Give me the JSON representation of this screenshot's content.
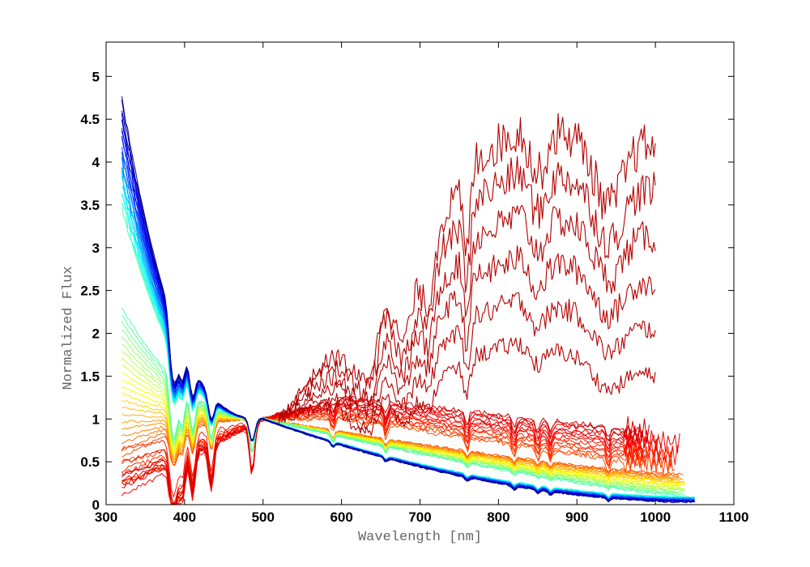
{
  "chart_data": {
    "type": "line",
    "title": "",
    "xlabel": "Wavelength [nm]",
    "ylabel": "Normalized Flux",
    "xlim": [
      300,
      1100
    ],
    "ylim": [
      0,
      5.4
    ],
    "xticks": [
      300,
      400,
      500,
      600,
      700,
      800,
      900,
      1000,
      1100
    ],
    "yticks": [
      0,
      0.5,
      1,
      1.5,
      2,
      2.5,
      3,
      3.5,
      4,
      4.5,
      5
    ],
    "xtick_labels": [
      "300",
      "400",
      "500",
      "600",
      "700",
      "800",
      "900",
      "1000",
      "1100"
    ],
    "ytick_labels": [
      "0",
      "0.5",
      "1",
      "1.5",
      "2",
      "2.5",
      "3",
      "3.5",
      "4",
      "4.5",
      "5"
    ],
    "grid": false,
    "legend": "none",
    "colormap": [
      "#00008f",
      "#0000ff",
      "#0080ff",
      "#00ffff",
      "#80ff80",
      "#ffff00",
      "#ff8000",
      "#ff0000",
      "#800000"
    ],
    "series_groups": [
      {
        "kind": "hot",
        "count": 22,
        "color_position_range": [
          0.0,
          0.45
        ],
        "x_range": [
          320,
          1050
        ],
        "flux_at_320": [
          3.5,
          4.75
        ],
        "flux_at_1050": [
          0.03,
          0.09
        ],
        "normalized_at": 500
      },
      {
        "kind": "warm",
        "count": 22,
        "color_position_range": [
          0.45,
          0.8
        ],
        "x_range": [
          320,
          1040
        ],
        "flux_at_320": [
          0.55,
          2.3
        ],
        "flux_at_1040": [
          0.1,
          0.35
        ],
        "normalized_at": 500
      },
      {
        "kind": "cool",
        "count": 14,
        "color_position_range": [
          0.8,
          0.92
        ],
        "x_range": [
          320,
          1045
        ],
        "flux_at_320": [
          0.05,
          0.8
        ],
        "flux_at_600": [
          1.0,
          1.25
        ],
        "flux_at_1000": [
          0.45,
          0.85
        ],
        "normalized_at": 500
      },
      {
        "kind": "very-cool",
        "count": 6,
        "color": "#b40000",
        "x_range": [
          520,
          1000
        ],
        "peak_flux": [
          1.9,
          4.4
        ],
        "flux_at_1000": [
          1.5,
          4.2
        ],
        "normalized_at": 500
      }
    ],
    "absorption_lines_nm": [
      383.5,
      388.9,
      397.0,
      410.2,
      434.0,
      486.1,
      589.0,
      656.3,
      760.0,
      820.0,
      850.0,
      866.0,
      940.0
    ]
  }
}
